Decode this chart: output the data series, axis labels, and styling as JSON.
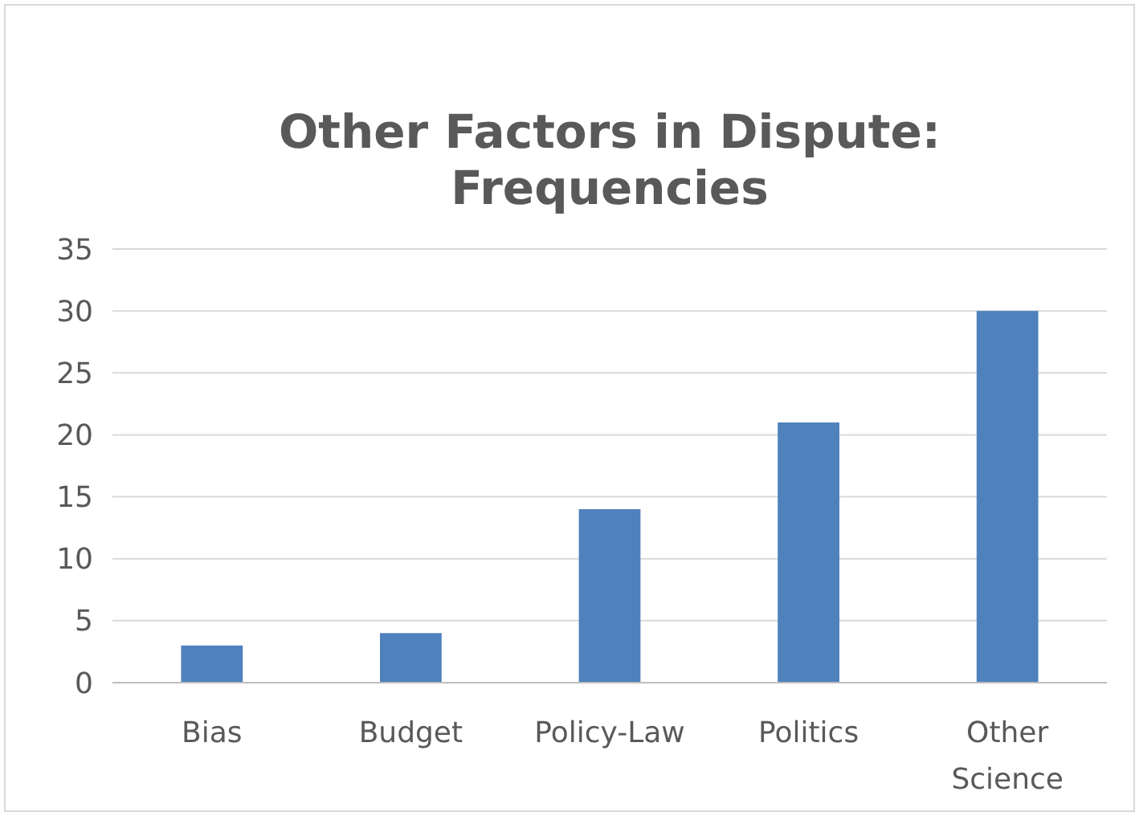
{
  "chart_data": {
    "type": "bar",
    "title": "Other Factors in Dispute: Frequencies",
    "categories": [
      "Bias",
      "Budget",
      "Policy-Law",
      "Politics",
      "Other Science"
    ],
    "values": [
      3,
      4,
      14,
      21,
      30
    ],
    "color": "#4f81bd",
    "ylim": [
      0,
      35
    ],
    "yticks": [
      0,
      5,
      10,
      15,
      20,
      25,
      30,
      35
    ],
    "grid": "y"
  }
}
